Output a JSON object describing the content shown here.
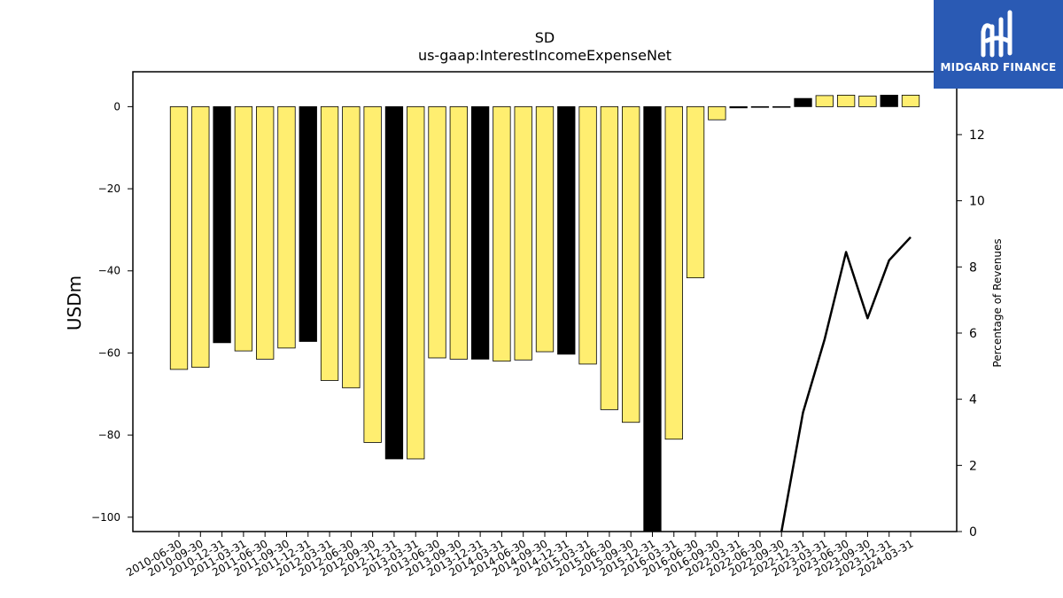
{
  "chart_data": {
    "type": "bar",
    "title": "SD",
    "subtitle": "us-gaap:InterestIncomeExpenseNet",
    "ylabel": "USDm",
    "ylabel_right": "Percentage of Revenues",
    "ylim": [
      -103.5,
      8.5
    ],
    "ylim_right": [
      0,
      13.9
    ],
    "yticks": [
      0,
      -20,
      -40,
      -60,
      -80,
      -100
    ],
    "yticks_right": [
      0,
      2,
      4,
      6,
      8,
      10,
      12
    ],
    "categories": [
      "2010-06-30",
      "2010-09-30",
      "2010-12-31",
      "2011-03-31",
      "2011-06-30",
      "2011-09-30",
      "2011-12-31",
      "2012-03-31",
      "2012-06-30",
      "2012-09-30",
      "2012-12-31",
      "2013-03-31",
      "2013-06-30",
      "2013-09-30",
      "2013-12-31",
      "2014-03-31",
      "2014-06-30",
      "2014-09-30",
      "2014-12-31",
      "2015-03-31",
      "2015-06-30",
      "2015-09-30",
      "2015-12-31",
      "2016-03-31",
      "2016-06-30",
      "2016-09-30",
      "2022-03-31",
      "2022-06-30",
      "2022-09-30",
      "2022-12-31",
      "2023-03-31",
      "2023-06-30",
      "2023-09-30",
      "2023-12-31",
      "2024-03-31"
    ],
    "values": [
      -64.0,
      -63.5,
      -57.5,
      -59.5,
      -61.5,
      -58.8,
      -57.2,
      -66.7,
      -68.5,
      -81.8,
      -85.8,
      -85.8,
      -61.2,
      -61.5,
      -61.5,
      -62.0,
      -61.7,
      -59.7,
      -60.3,
      -62.7,
      -73.8,
      -76.9,
      -103.5,
      -81.0,
      -41.7,
      -3.2,
      -0.3,
      -0.1,
      -0.1,
      2.0,
      2.7,
      2.8,
      2.6,
      2.8,
      2.8
    ],
    "colors": [
      "#ffee70",
      "#ffee70",
      "#000000",
      "#ffee70",
      "#ffee70",
      "#ffee70",
      "#000000",
      "#ffee70",
      "#ffee70",
      "#ffee70",
      "#000000",
      "#ffee70",
      "#ffee70",
      "#ffee70",
      "#000000",
      "#ffee70",
      "#ffee70",
      "#ffee70",
      "#000000",
      "#ffee70",
      "#ffee70",
      "#ffee70",
      "#000000",
      "#ffee70",
      "#ffee70",
      "#ffee70",
      "#000000",
      "#ffee70",
      "#ffee70",
      "#000000",
      "#ffee70",
      "#ffee70",
      "#ffee70",
      "#000000",
      "#ffee70"
    ],
    "line_series": {
      "start_category": "2022-09-30",
      "values": [
        0,
        3.6,
        5.8,
        8.45,
        6.45,
        8.2,
        8.9
      ],
      "color": "#000000"
    },
    "grid": false
  },
  "logo": {
    "text": "MIDGARD FINANCE",
    "bg": "#2a5ab4"
  }
}
